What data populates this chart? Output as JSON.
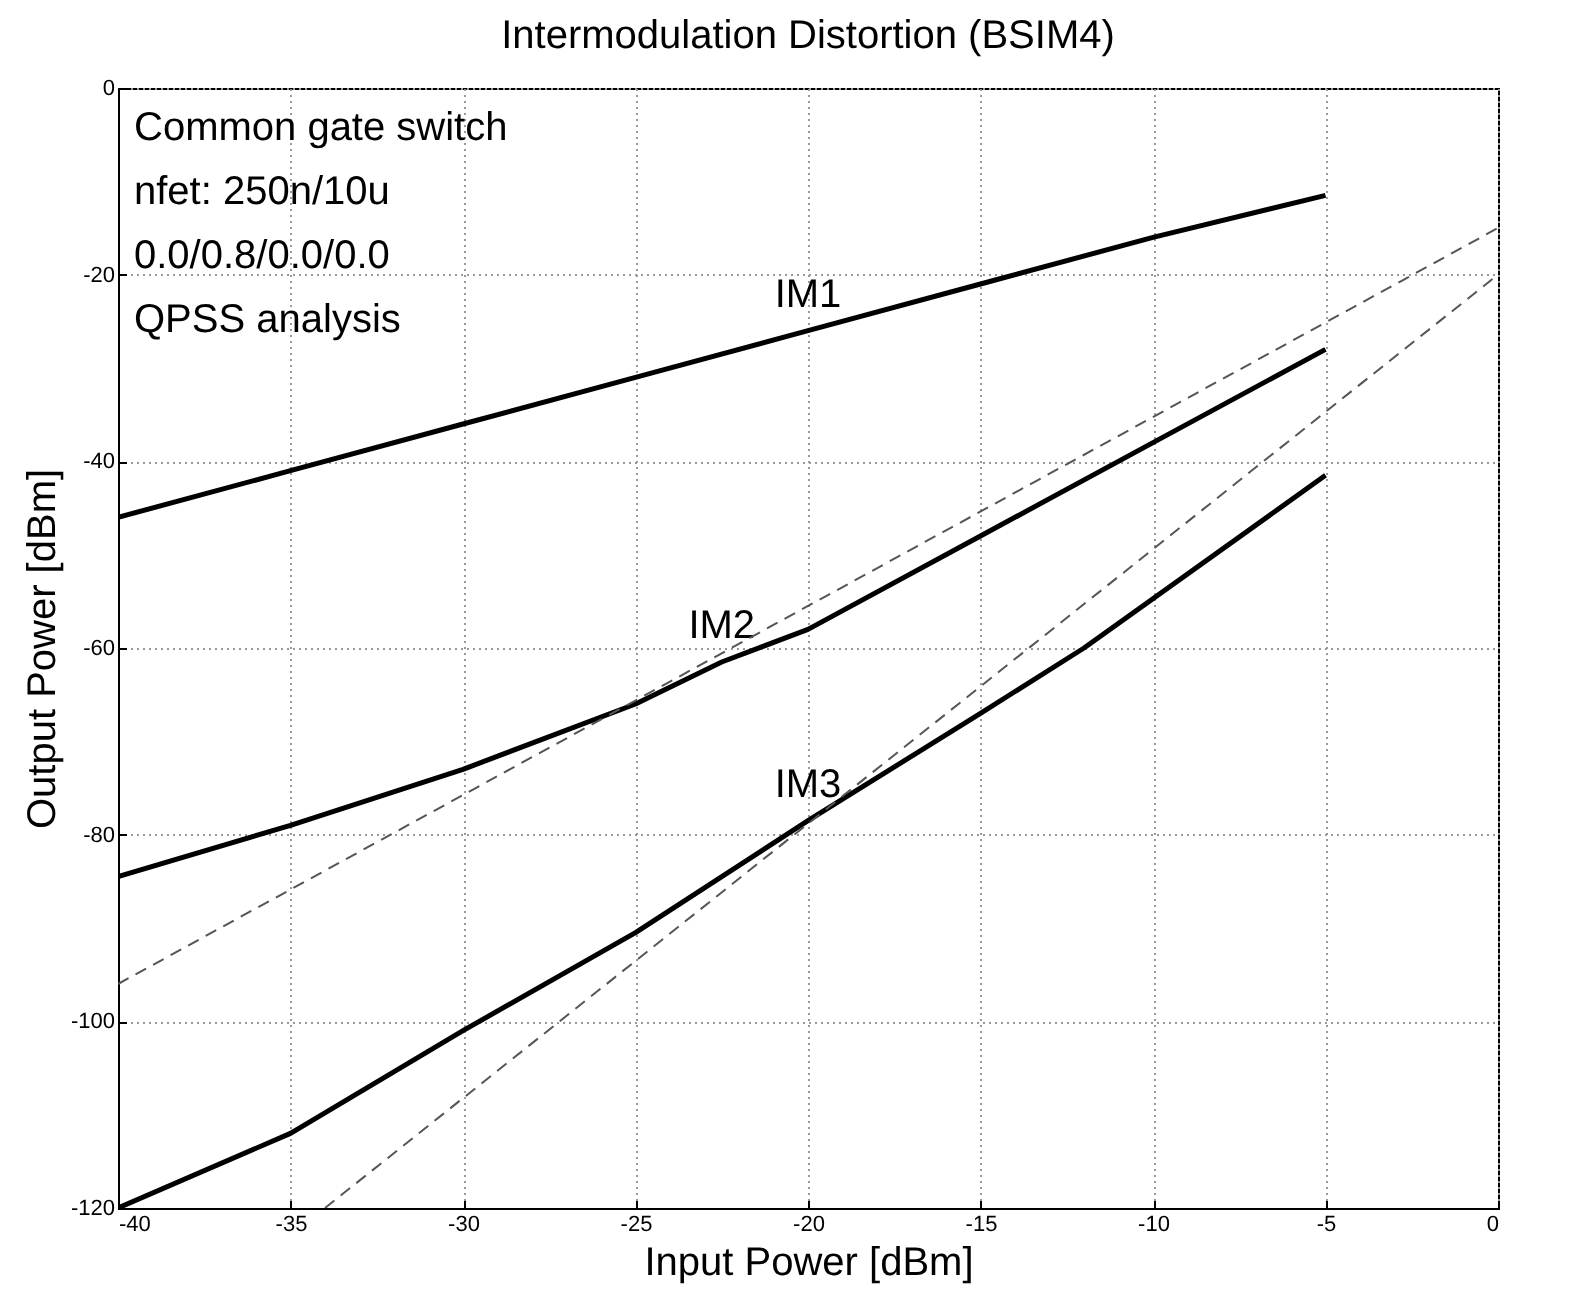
{
  "chart_data": {
    "type": "line",
    "title": "Intermodulation Distortion (BSIM4)",
    "xlabel": "Input Power [dBm]",
    "ylabel": "Output Power [dBm]",
    "annotations": [
      "Common gate switch",
      "nfet: 250n/10u",
      "0.0/0.8/0.0/0.0",
      "QPSS analysis"
    ],
    "series": [
      {
        "name": "IM1",
        "color": "#000000",
        "x": [
          -40,
          -35,
          -30,
          -25,
          -20,
          -15,
          -10,
          -5
        ],
        "values": [
          -46,
          -41,
          -36,
          -31,
          -26,
          -21,
          -16,
          -11.5
        ]
      },
      {
        "name": "IM2",
        "color": "#000000",
        "x": [
          -40,
          -35,
          -30,
          -25,
          -22.5,
          -20,
          -15,
          -10,
          -5
        ],
        "values": [
          -84.5,
          -79,
          -73,
          -66,
          -61.5,
          -58,
          -48,
          -38,
          -28
        ]
      },
      {
        "name": "IM3",
        "color": "#000000",
        "x": [
          -40,
          -35,
          -30,
          -25,
          -20,
          -15,
          -12,
          -5
        ],
        "values": [
          -120,
          -112,
          -101,
          -90.5,
          -78.5,
          -67,
          -60,
          -41.5
        ]
      },
      {
        "color": "#555555",
        "line_style": "dashed",
        "x": [
          -40,
          0
        ],
        "values": [
          -96,
          -15
        ]
      },
      {
        "color": "#555555",
        "line_style": "dashed",
        "x": [
          -34,
          0
        ],
        "values": [
          -120,
          -20
        ]
      }
    ],
    "xlim": [
      -40,
      0
    ],
    "xticks": [
      -40,
      -35,
      -30,
      -25,
      -20,
      -15,
      -10,
      -5,
      0
    ],
    "ylim": [
      -120,
      0
    ],
    "yticks": [
      -120,
      -100,
      -80,
      -60,
      -40,
      -20,
      0
    ],
    "grid": true,
    "line_style": "solid",
    "marker": "none"
  }
}
